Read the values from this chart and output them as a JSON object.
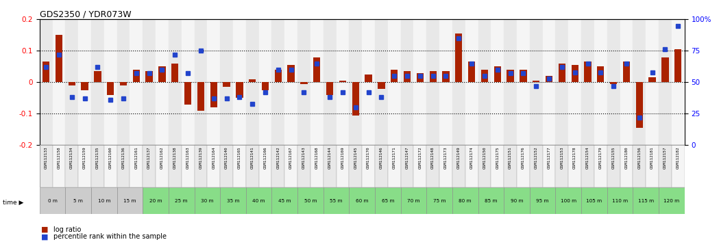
{
  "title": "GDS2350 / YDR073W",
  "samples": [
    "GSM112133",
    "GSM112158",
    "GSM112134",
    "GSM112159",
    "GSM112135",
    "GSM112160",
    "GSM112136",
    "GSM112161",
    "GSM112137",
    "GSM112162",
    "GSM112138",
    "GSM112163",
    "GSM112139",
    "GSM112164",
    "GSM112140",
    "GSM112165",
    "GSM112141",
    "GSM112166",
    "GSM112142",
    "GSM112167",
    "GSM112143",
    "GSM112168",
    "GSM112144",
    "GSM112169",
    "GSM112145",
    "GSM112170",
    "GSM112146",
    "GSM112171",
    "GSM112147",
    "GSM112172",
    "GSM112148",
    "GSM112173",
    "GSM112149",
    "GSM112174",
    "GSM112150",
    "GSM112175",
    "GSM112151",
    "GSM112176",
    "GSM112152",
    "GSM112177",
    "GSM112153",
    "GSM112178",
    "GSM112154",
    "GSM112179",
    "GSM112155",
    "GSM112180",
    "GSM112156",
    "GSM112181",
    "GSM112157",
    "GSM112182"
  ],
  "time_labels": [
    "0 m",
    "5 m",
    "10 m",
    "15 m",
    "20 m",
    "25 m",
    "30 m",
    "35 m",
    "40 m",
    "45 m",
    "50 m",
    "55 m",
    "60 m",
    "65 m",
    "70 m",
    "75 m",
    "80 m",
    "85 m",
    "90 m",
    "95 m",
    "100 m",
    "105 m",
    "110 m",
    "115 m",
    "120 m"
  ],
  "log_ratios": [
    0.065,
    0.15,
    -0.01,
    -0.025,
    0.035,
    -0.04,
    -0.01,
    0.04,
    0.035,
    0.05,
    0.06,
    -0.07,
    -0.09,
    -0.08,
    -0.015,
    -0.05,
    0.01,
    -0.025,
    0.04,
    0.055,
    -0.005,
    0.08,
    -0.04,
    0.005,
    -0.105,
    0.025,
    -0.02,
    0.04,
    0.035,
    0.03,
    0.035,
    0.035,
    0.155,
    0.065,
    0.04,
    0.05,
    0.04,
    0.04,
    0.005,
    0.02,
    0.06,
    0.055,
    0.065,
    0.05,
    -0.005,
    0.065,
    -0.145,
    0.015,
    0.08,
    0.105
  ],
  "percentile_ranks": [
    62,
    72,
    38,
    37,
    62,
    36,
    37,
    57,
    57,
    60,
    72,
    57,
    75,
    37,
    37,
    38,
    33,
    42,
    60,
    60,
    42,
    65,
    38,
    42,
    30,
    42,
    38,
    55,
    55,
    55,
    55,
    55,
    85,
    65,
    55,
    60,
    57,
    57,
    47,
    53,
    62,
    58,
    65,
    58,
    47,
    65,
    22,
    58,
    76,
    95
  ],
  "bar_color": "#aa2200",
  "dot_color": "#2244cc",
  "background_color": "#ffffff",
  "ylim_left": [
    -0.2,
    0.2
  ],
  "ylim_right": [
    0,
    100
  ],
  "yticks_left": [
    -0.2,
    -0.1,
    0.0,
    0.1,
    0.2
  ],
  "yticks_left_labels": [
    "-0.2",
    "-0.1",
    "0",
    "0.1",
    "0.2"
  ],
  "yticks_right": [
    0,
    25,
    50,
    75,
    100
  ],
  "yticks_right_labels": [
    "0",
    "25",
    "50",
    "75",
    "100%"
  ],
  "grey_time_count": 4,
  "sample_bg_even": "#e8e8e8",
  "sample_bg_odd": "#f5f5f5",
  "time_bg_grey": "#cccccc",
  "time_bg_green": "#88dd88"
}
